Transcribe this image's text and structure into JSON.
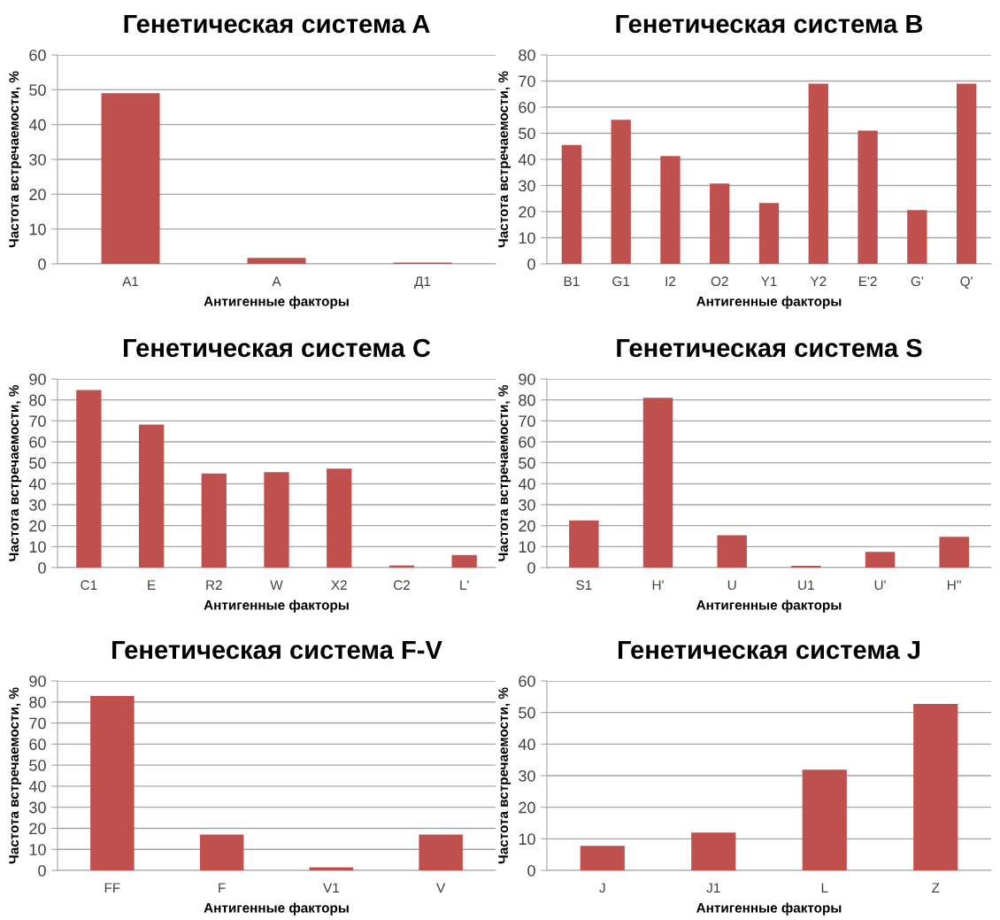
{
  "chart_data": [
    {
      "type": "bar",
      "title": "Генетическая система A",
      "xlabel": "Антигенные факторы",
      "ylabel": "Частота встречаемости, %",
      "categories": [
        "A1",
        "A",
        "Д1"
      ],
      "values": [
        49,
        1.7,
        0.4
      ],
      "color": "#c0504d",
      "ylim": [
        0,
        60
      ],
      "yticks": [
        0,
        10,
        20,
        30,
        40,
        50,
        60
      ],
      "grid": "y"
    },
    {
      "type": "bar",
      "title": "Генетическая система B",
      "xlabel": "Антигенные факторы",
      "ylabel": "Частота встречаемости, %",
      "categories": [
        "B1",
        "G1",
        "I2",
        "O2",
        "Y1",
        "Y2",
        "E'2",
        "G'",
        "Q'"
      ],
      "values": [
        45.5,
        55.2,
        41.3,
        30.8,
        23.3,
        69,
        51,
        20.6,
        69
      ],
      "color": "#c0504d",
      "ylim": [
        0,
        80
      ],
      "yticks": [
        0,
        10,
        20,
        30,
        40,
        50,
        60,
        70,
        80
      ],
      "grid": "y"
    },
    {
      "type": "bar",
      "title": "Генетическая система C",
      "xlabel": "Антигенные факторы",
      "ylabel": "Частота встречаемости, %",
      "categories": [
        "C1",
        "E",
        "R2",
        "W",
        "X2",
        "C2",
        "L'"
      ],
      "values": [
        84.7,
        68.2,
        44.9,
        45.5,
        47.2,
        1,
        6
      ],
      "color": "#c0504d",
      "ylim": [
        0,
        90
      ],
      "yticks": [
        0,
        10,
        20,
        30,
        40,
        50,
        60,
        70,
        80,
        90
      ],
      "grid": "y"
    },
    {
      "type": "bar",
      "title": "Генетическая система S",
      "xlabel": "Антигенные факторы",
      "ylabel": "Частота встречаемости, %",
      "categories": [
        "S1",
        "H'",
        "U",
        "U1",
        "U'",
        "H''"
      ],
      "values": [
        22.5,
        81,
        15.4,
        0.8,
        7.5,
        14.7
      ],
      "color": "#c0504d",
      "ylim": [
        0,
        90
      ],
      "yticks": [
        0,
        10,
        20,
        30,
        40,
        50,
        60,
        70,
        80,
        90
      ],
      "grid": "y"
    },
    {
      "type": "bar",
      "title": "Генетическая система F-V",
      "xlabel": "Антигенные факторы",
      "ylabel": "Частота встречаемости, %",
      "categories": [
        "FF",
        "F",
        "V1",
        "V"
      ],
      "values": [
        82.8,
        17,
        1.5,
        17
      ],
      "color": "#c0504d",
      "ylim": [
        0,
        90
      ],
      "yticks": [
        0,
        10,
        20,
        30,
        40,
        50,
        60,
        70,
        80,
        90
      ],
      "grid": "y"
    },
    {
      "type": "bar",
      "title": "Генетическая система J",
      "xlabel": "Антигенные факторы",
      "ylabel": "Частота встречаемости, %",
      "categories": [
        "J",
        "J1",
        "L",
        "Z"
      ],
      "values": [
        7.8,
        12,
        31.9,
        52.7
      ],
      "color": "#c0504d",
      "ylim": [
        0,
        60
      ],
      "yticks": [
        0,
        10,
        20,
        30,
        40,
        50,
        60
      ],
      "grid": "y"
    }
  ]
}
